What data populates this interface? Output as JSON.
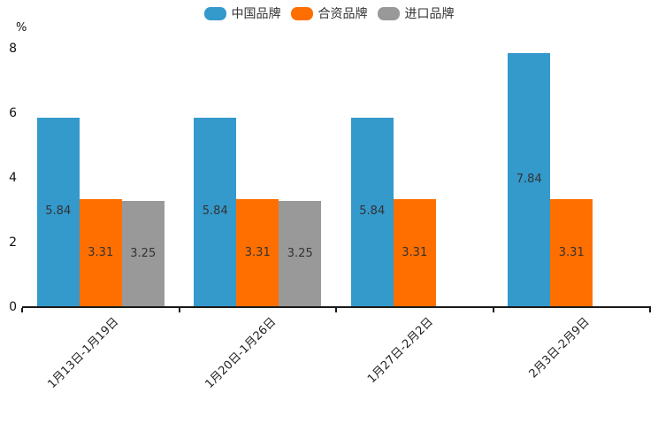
{
  "chart_data": {
    "type": "bar",
    "title": "",
    "ylabel": "%",
    "xlabel": "",
    "categories": [
      "1月13日-1月19日",
      "1月20日-1月26日",
      "1月27日-2月2日",
      "2月3日-2月9日"
    ],
    "series": [
      {
        "name": "中国品牌",
        "color": "#3499CB",
        "values": [
          5.84,
          5.84,
          5.84,
          7.84
        ]
      },
      {
        "name": "合资品牌",
        "color": "#FF6F00",
        "values": [
          3.31,
          3.31,
          3.31,
          3.31
        ]
      },
      {
        "name": "进口品牌",
        "color": "#999999",
        "values": [
          3.25,
          3.25,
          null,
          null
        ]
      }
    ],
    "value_labels": [
      [
        "5.84",
        "3.31",
        "3.25"
      ],
      [
        "5.84",
        "3.31",
        "3.25"
      ],
      [
        "5.84",
        "3.31",
        ""
      ],
      [
        "7.84",
        "3.31",
        ""
      ]
    ],
    "ylim": [
      0,
      8
    ],
    "yticks": [
      "0",
      "2",
      "4",
      "6",
      "8"
    ],
    "grid": false,
    "legend_position": "top",
    "bar_label_position": "inside-center"
  }
}
